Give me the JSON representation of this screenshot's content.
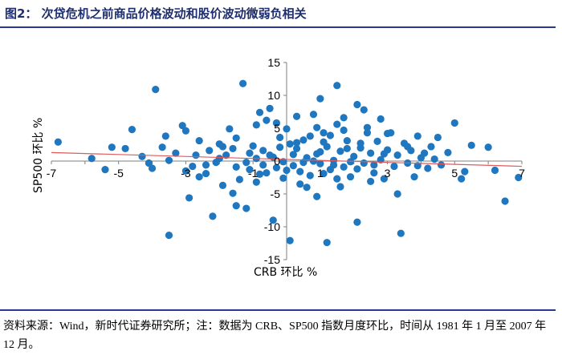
{
  "figure": {
    "title": "图2： 次贷危机之前商品价格波动和股价波动微弱负相关",
    "source": "资料来源：Wind，新时代证券研究所；注：数据为 CRB、SP500 指数月度环比，时间从 1981 年 1 月至 2007 年 12 月。"
  },
  "colors": {
    "points": "#1f77c0",
    "trendline": "#e05a5a",
    "rule": "#2b3990",
    "title": "#1f2f6e"
  },
  "chart_data": {
    "type": "scatter",
    "xlabel": "CRB 环比 %",
    "ylabel": "SP500 环比 %",
    "xlim": [
      -7,
      7
    ],
    "ylim": [
      -15,
      15
    ],
    "x_ticks": [
      "-7",
      "-5",
      "-3",
      "-1",
      "1",
      "3",
      "5",
      "7"
    ],
    "y_ticks": [
      "15",
      "10",
      "5",
      "0",
      "-5",
      "-10",
      "-15"
    ],
    "grid": false,
    "trendline": {
      "x": [
        -7,
        7
      ],
      "y": [
        1.3,
        -0.8
      ]
    },
    "points": [
      [
        -6.8,
        2.9
      ],
      [
        -5.2,
        2.1
      ],
      [
        -5.4,
        -1.3
      ],
      [
        -4.6,
        4.8
      ],
      [
        -4.3,
        0.7
      ],
      [
        -4.1,
        -0.3
      ],
      [
        -4.0,
        -1.1
      ],
      [
        -3.9,
        10.9
      ],
      [
        -3.6,
        3.8
      ],
      [
        -3.5,
        -11.3
      ],
      [
        -3.3,
        1.2
      ],
      [
        -3.1,
        5.4
      ],
      [
        -3.0,
        4.6
      ],
      [
        -2.8,
        -0.8
      ],
      [
        -2.6,
        -2.4
      ],
      [
        -2.4,
        -0.6
      ],
      [
        -2.3,
        1.6
      ],
      [
        -2.1,
        -0.2
      ],
      [
        -2.0,
        2.6
      ],
      [
        -1.9,
        -3.7
      ],
      [
        -1.8,
        0.9
      ],
      [
        -1.6,
        -4.9
      ],
      [
        -1.5,
        3.5
      ],
      [
        -1.4,
        -2.8
      ],
      [
        -1.3,
        11.8
      ],
      [
        -1.2,
        -7.2
      ],
      [
        -1.1,
        -1.3
      ],
      [
        -1.0,
        2.3
      ],
      [
        -0.9,
        0.4
      ],
      [
        -0.8,
        -2.0
      ],
      [
        -0.7,
        1.6
      ],
      [
        -0.6,
        6.2
      ],
      [
        -0.5,
        8.0
      ],
      [
        -0.4,
        0.6
      ],
      [
        -0.3,
        -1.0
      ],
      [
        -0.2,
        3.6
      ],
      [
        -0.1,
        -0.1
      ],
      [
        0.0,
        4.9
      ],
      [
        0.1,
        2.6
      ],
      [
        0.2,
        -0.7
      ],
      [
        0.3,
        1.9
      ],
      [
        0.4,
        -1.6
      ],
      [
        0.5,
        3.2
      ],
      [
        0.6,
        0.5
      ],
      [
        0.7,
        -2.2
      ],
      [
        0.8,
        7.1
      ],
      [
        0.9,
        1.1
      ],
      [
        1.0,
        -0.4
      ],
      [
        1.1,
        4.3
      ],
      [
        1.2,
        2.2
      ],
      [
        1.3,
        -1.3
      ],
      [
        1.4,
        0.1
      ],
      [
        1.5,
        5.6
      ],
      [
        1.6,
        1.5
      ],
      [
        1.7,
        -0.9
      ],
      [
        1.8,
        3.1
      ],
      [
        1.9,
        -2.4
      ],
      [
        2.0,
        0.7
      ],
      [
        2.1,
        8.6
      ],
      [
        2.2,
        2.0
      ],
      [
        2.3,
        -0.3
      ],
      [
        2.4,
        4.3
      ],
      [
        2.5,
        1.2
      ],
      [
        2.6,
        -1.8
      ],
      [
        2.7,
        3.0
      ],
      [
        2.8,
        0.2
      ],
      [
        2.9,
        -2.7
      ],
      [
        3.0,
        1.7
      ],
      [
        3.1,
        4.3
      ],
      [
        3.2,
        -0.8
      ],
      [
        3.3,
        0.9
      ],
      [
        3.4,
        -11.0
      ],
      [
        3.5,
        2.7
      ],
      [
        3.6,
        -0.3
      ],
      [
        3.7,
        1.6
      ],
      [
        3.8,
        -2.4
      ],
      [
        3.9,
        3.8
      ],
      [
        4.0,
        0.5
      ],
      [
        4.1,
        1.2
      ],
      [
        4.2,
        -1.1
      ],
      [
        4.3,
        2.2
      ],
      [
        4.4,
        0.3
      ],
      [
        4.6,
        -0.6
      ],
      [
        4.8,
        1.3
      ],
      [
        5.0,
        5.8
      ],
      [
        5.2,
        -2.7
      ],
      [
        5.5,
        2.4
      ],
      [
        6.0,
        2.1
      ],
      [
        6.2,
        -1.4
      ],
      [
        6.5,
        -6.1
      ],
      [
        6.9,
        -2.5
      ],
      [
        -2.9,
        -5.6
      ],
      [
        -2.2,
        -8.4
      ],
      [
        -0.4,
        -9.0
      ],
      [
        0.1,
        -12.1
      ],
      [
        1.2,
        -12.4
      ],
      [
        2.1,
        -9.3
      ],
      [
        3.3,
        -5.0
      ],
      [
        -1.5,
        -6.8
      ],
      [
        0.6,
        -4.0
      ],
      [
        -0.3,
        5.8
      ],
      [
        0.3,
        6.8
      ],
      [
        1.0,
        9.5
      ],
      [
        1.5,
        11.5
      ],
      [
        2.8,
        6.4
      ],
      [
        -2.6,
        3.1
      ],
      [
        -1.7,
        4.9
      ],
      [
        -0.9,
        5.5
      ],
      [
        0.9,
        5.1
      ],
      [
        1.7,
        4.7
      ],
      [
        2.4,
        5.1
      ],
      [
        3.0,
        4.2
      ],
      [
        -3.7,
        2.1
      ],
      [
        -1.2,
        -0.2
      ],
      [
        0.5,
        -0.2
      ],
      [
        1.4,
        -0.6
      ],
      [
        2.1,
        -1.2
      ],
      [
        -0.6,
        -1.8
      ],
      [
        -1.5,
        -0.9
      ],
      [
        0.2,
        1.0
      ],
      [
        1.0,
        1.4
      ],
      [
        1.8,
        1.9
      ],
      [
        -0.2,
        2.1
      ],
      [
        -2.0,
        0.4
      ],
      [
        2.6,
        -0.6
      ],
      [
        -0.9,
        -3.2
      ],
      [
        0.4,
        -3.5
      ],
      [
        1.6,
        -3.9
      ],
      [
        -2.4,
        -1.9
      ],
      [
        2.2,
        2.7
      ],
      [
        -1.9,
        2.2
      ],
      [
        0.7,
        3.8
      ],
      [
        1.3,
        3.9
      ],
      [
        -0.5,
        0.9
      ],
      [
        0.0,
        -1.4
      ],
      [
        1.1,
        -1.9
      ],
      [
        -1.1,
        1.2
      ],
      [
        2.9,
        1.1
      ],
      [
        3.6,
        2.2
      ],
      [
        -3.0,
        -1.5
      ],
      [
        0.8,
        0.0
      ],
      [
        1.9,
        -0.1
      ],
      [
        -0.7,
        -0.6
      ],
      [
        -1.6,
        1.9
      ],
      [
        0.3,
        2.8
      ],
      [
        1.5,
        -2.7
      ],
      [
        -0.1,
        -2.6
      ],
      [
        2.5,
        -3.1
      ],
      [
        -2.7,
        0.9
      ],
      [
        1.1,
        2.9
      ],
      [
        -3.5,
        0.1
      ],
      [
        4.5,
        3.6
      ],
      [
        3.9,
        -0.7
      ],
      [
        -4.8,
        1.9
      ],
      [
        5.3,
        -1.6
      ],
      [
        -5.8,
        0.4
      ],
      [
        0.9,
        -5.4
      ],
      [
        -0.8,
        7.4
      ],
      [
        1.7,
        6.6
      ],
      [
        2.3,
        7.8
      ]
    ]
  }
}
